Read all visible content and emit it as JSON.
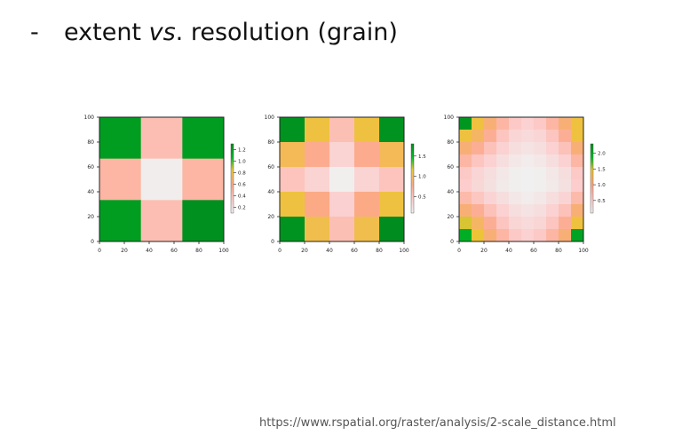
{
  "slide": {
    "bullet": "-",
    "title_before": "extent ",
    "title_italic": "vs",
    "title_after": ". resolution (grain)",
    "source_url": "https://www.rspatial.org/raster/analysis/2-scale_distance.html"
  },
  "chart_data": [
    {
      "type": "heatmap",
      "xlim": [
        0,
        100
      ],
      "ylim": [
        0,
        100
      ],
      "x_ticks": [
        "0",
        "20",
        "40",
        "60",
        "80",
        "100"
      ],
      "y_ticks": [
        "0",
        "20",
        "40",
        "60",
        "80",
        "100"
      ],
      "legend_ticks": [
        "0.2",
        "0.4",
        "0.6",
        "0.8",
        "1.0",
        "1.2"
      ],
      "legend_range": [
        0.1,
        1.3
      ],
      "grid": [
        [
          1.22,
          0.42,
          1.22
        ],
        [
          0.48,
          0.12,
          0.48
        ],
        [
          1.22,
          0.42,
          1.28
        ]
      ]
    },
    {
      "type": "heatmap",
      "xlim": [
        0,
        100
      ],
      "ylim": [
        0,
        100
      ],
      "x_ticks": [
        "0",
        "20",
        "40",
        "60",
        "80",
        "100"
      ],
      "y_ticks": [
        "0",
        "20",
        "40",
        "60",
        "80",
        "100"
      ],
      "legend_ticks": [
        "0.5",
        "1.0",
        "1.5"
      ],
      "legend_range": [
        0.1,
        1.8
      ],
      "grid": [
        [
          1.75,
          1.1,
          0.55,
          1.1,
          1.75
        ],
        [
          1.0,
          0.75,
          0.35,
          0.75,
          1.0
        ],
        [
          0.5,
          0.35,
          0.12,
          0.35,
          0.5
        ],
        [
          1.1,
          0.8,
          0.38,
          0.8,
          1.1
        ],
        [
          1.75,
          1.05,
          0.55,
          1.05,
          1.8
        ]
      ]
    },
    {
      "type": "heatmap",
      "xlim": [
        0,
        100
      ],
      "ylim": [
        0,
        100
      ],
      "x_ticks": [
        "0",
        "20",
        "40",
        "60",
        "80",
        "100"
      ],
      "y_ticks": [
        "0",
        "20",
        "40",
        "60",
        "80",
        "100"
      ],
      "legend_ticks": [
        "0.5",
        "1.0",
        "1.5",
        "2.0"
      ],
      "legend_range": [
        0.1,
        2.3
      ],
      "grid": [
        [
          2.2,
          1.4,
          1.1,
          0.8,
          0.55,
          0.45,
          0.55,
          0.8,
          1.1,
          1.4
        ],
        [
          1.4,
          1.2,
          0.9,
          0.6,
          0.4,
          0.35,
          0.4,
          0.6,
          0.9,
          1.4
        ],
        [
          1.1,
          0.9,
          0.65,
          0.45,
          0.3,
          0.25,
          0.3,
          0.45,
          0.65,
          1.1
        ],
        [
          0.8,
          0.6,
          0.45,
          0.3,
          0.2,
          0.15,
          0.2,
          0.3,
          0.45,
          0.8
        ],
        [
          0.55,
          0.4,
          0.3,
          0.2,
          0.12,
          0.1,
          0.12,
          0.2,
          0.3,
          0.55
        ],
        [
          0.5,
          0.38,
          0.28,
          0.18,
          0.12,
          0.1,
          0.12,
          0.18,
          0.28,
          0.5
        ],
        [
          0.75,
          0.58,
          0.42,
          0.3,
          0.2,
          0.15,
          0.2,
          0.3,
          0.42,
          0.75
        ],
        [
          1.1,
          0.9,
          0.65,
          0.45,
          0.3,
          0.25,
          0.3,
          0.45,
          0.65,
          1.1
        ],
        [
          1.5,
          1.2,
          0.9,
          0.6,
          0.4,
          0.35,
          0.4,
          0.6,
          0.9,
          1.4
        ],
        [
          2.0,
          1.45,
          1.1,
          0.8,
          0.55,
          0.45,
          0.55,
          0.8,
          1.1,
          2.1
        ]
      ]
    }
  ]
}
